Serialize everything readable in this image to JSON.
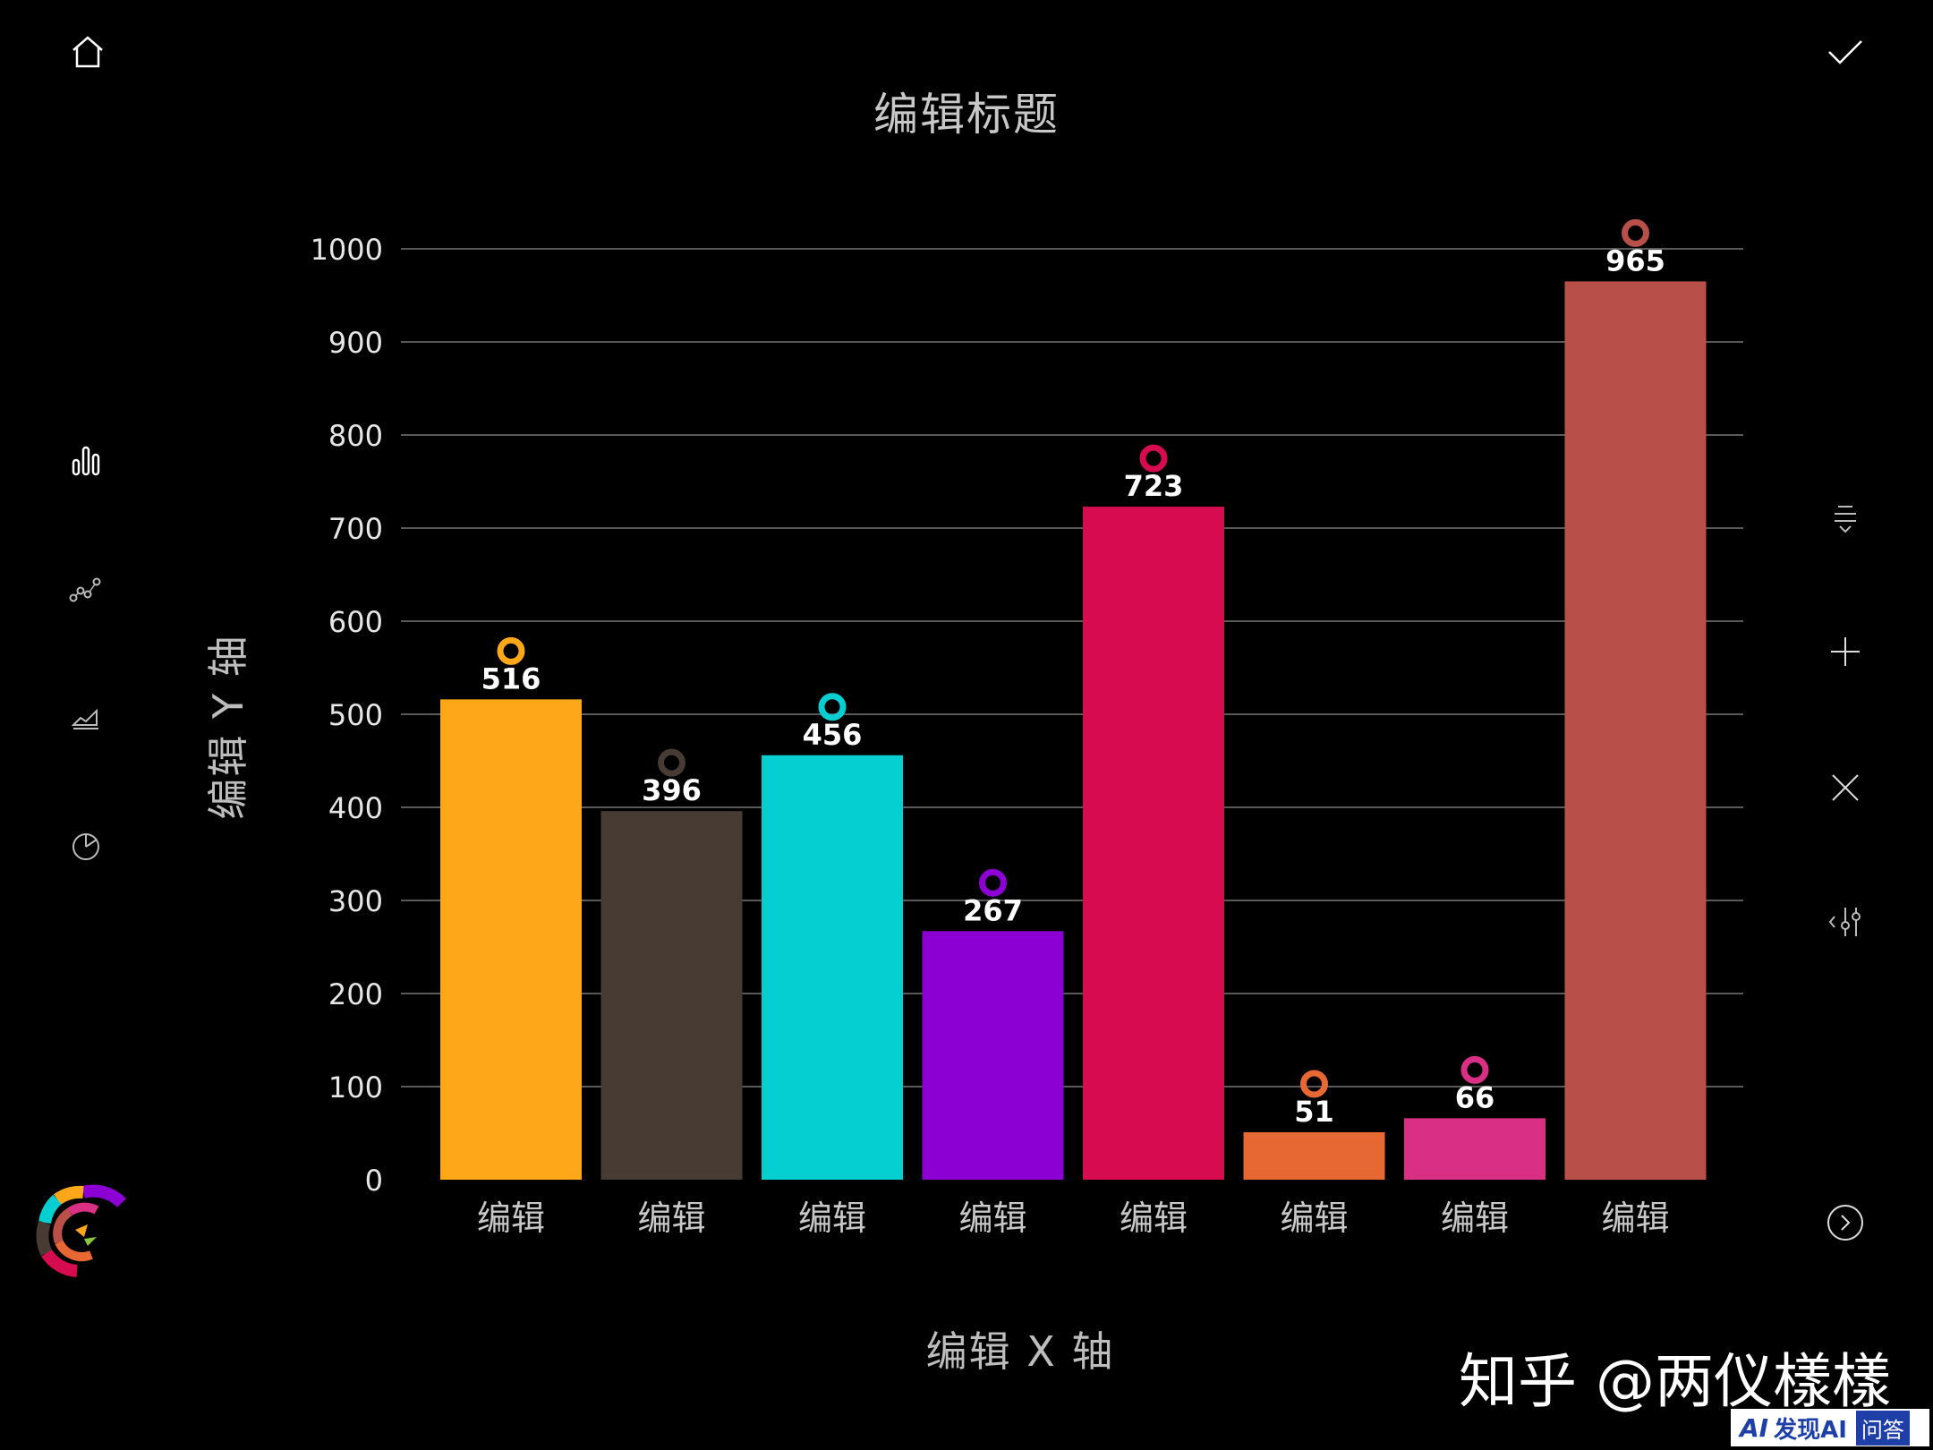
{
  "toolbar_left": {
    "home_icon": "home-icon",
    "bar_chart_icon": "bar-chart-icon",
    "scatter_icon": "scatter-icon",
    "area_chart_icon": "area-chart-icon",
    "pie_chart_icon": "pie-chart-icon",
    "logo": "app-logo"
  },
  "toolbar_right": {
    "confirm_icon": "check-icon",
    "sort_icon": "sort-icon",
    "add_icon": "plus-icon",
    "delete_icon": "close-icon",
    "settings_icon": "sliders-icon",
    "next_icon": "chevron-right-icon"
  },
  "watermark": {
    "text": "知乎 @两仪樣樣",
    "badge_ai": "AI",
    "badge_zh": "发现AI",
    "badge_qa": "问答"
  },
  "chart_data": {
    "type": "bar",
    "title": "编辑标题",
    "xlabel": "编辑 X 轴",
    "ylabel": "编辑 Y 轴",
    "ylim": [
      0,
      1000
    ],
    "yticks": [
      "0",
      "100",
      "200",
      "300",
      "400",
      "500",
      "600",
      "700",
      "800",
      "900",
      "1000"
    ],
    "grid": true,
    "categories": [
      "编辑",
      "编辑",
      "编辑",
      "编辑",
      "编辑",
      "编辑",
      "编辑",
      "编辑"
    ],
    "values": [
      516,
      396,
      456,
      267,
      723,
      51,
      66,
      965
    ],
    "value_labels": [
      "516",
      "396",
      "456",
      "267",
      "723",
      "51",
      "66",
      "965"
    ],
    "colors": [
      "#fda719",
      "#483b33",
      "#05cfd1",
      "#8c00d4",
      "#d60b50",
      "#e86833",
      "#d92f84",
      "#b85049"
    ]
  }
}
